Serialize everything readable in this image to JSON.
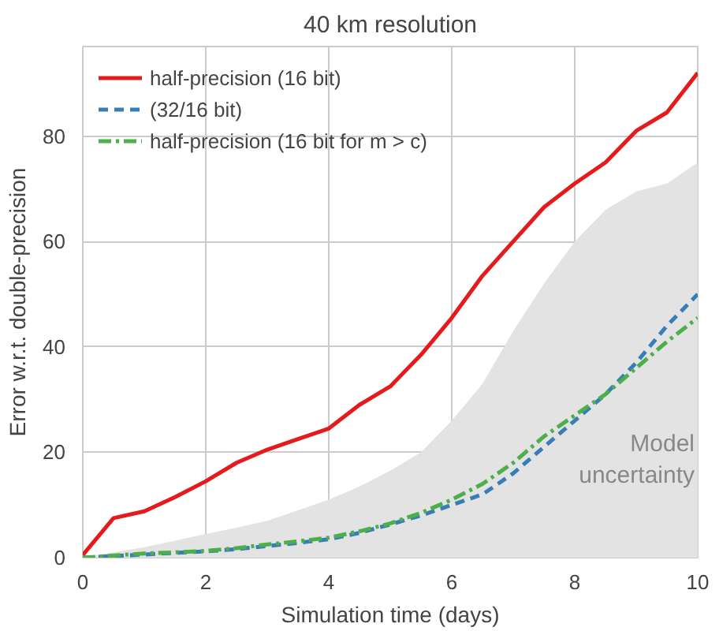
{
  "chart_data": {
    "type": "line",
    "title": "40 km resolution",
    "xlabel": "Simulation time (days)",
    "ylabel": "Error w.r.t. double-precision",
    "xlim": [
      0,
      10
    ],
    "ylim": [
      0,
      97
    ],
    "xticks": [
      0,
      2,
      4,
      6,
      8,
      10
    ],
    "yticks": [
      0,
      20,
      40,
      60,
      80
    ],
    "grid": true,
    "legend": "top left",
    "x": [
      0,
      0.5,
      1,
      1.5,
      2,
      2.5,
      3,
      3.5,
      4,
      4.5,
      5,
      5.5,
      6,
      6.5,
      7,
      7.5,
      8,
      8.5,
      9,
      9.5,
      10
    ],
    "series": [
      {
        "type": "area",
        "color": "#e3e3e3",
        "values": [
          0,
          1,
          2,
          3.2,
          4.5,
          5.7,
          7,
          9,
          11,
          13.5,
          16.5,
          20,
          26,
          33,
          43,
          52,
          60,
          66,
          69.5,
          71,
          75
        ]
      },
      {
        "name": "half-precision (16 bit)",
        "color": "#e41a1c",
        "line_style": "solid",
        "values": [
          0.5,
          7.5,
          8.8,
          11.5,
          14.5,
          18,
          20.5,
          22.5,
          24.5,
          29,
          32.5,
          38.5,
          45.5,
          53.5,
          60,
          66.5,
          71,
          75,
          81,
          84.5,
          92
        ]
      },
      {
        "name": "(32/16 bit)",
        "color": "#377eb8",
        "line_style": "dashed",
        "values": [
          0,
          0.3,
          0.6,
          0.9,
          1.2,
          1.6,
          2.2,
          2.8,
          3.5,
          4.7,
          6.3,
          8,
          10,
          12,
          16,
          21,
          26,
          31,
          37,
          44,
          50
        ]
      },
      {
        "name": "half-precision (16 bit for m > c)",
        "color": "#4daf4a",
        "line_style": "dashdot",
        "values": [
          0,
          0.4,
          0.8,
          1,
          1.3,
          1.8,
          2.5,
          3.1,
          3.8,
          5,
          6.5,
          8.5,
          11,
          14,
          18,
          23,
          27,
          31,
          36,
          41,
          45.5
        ]
      }
    ],
    "annotations": [
      "Model\nuncertainty"
    ]
  }
}
